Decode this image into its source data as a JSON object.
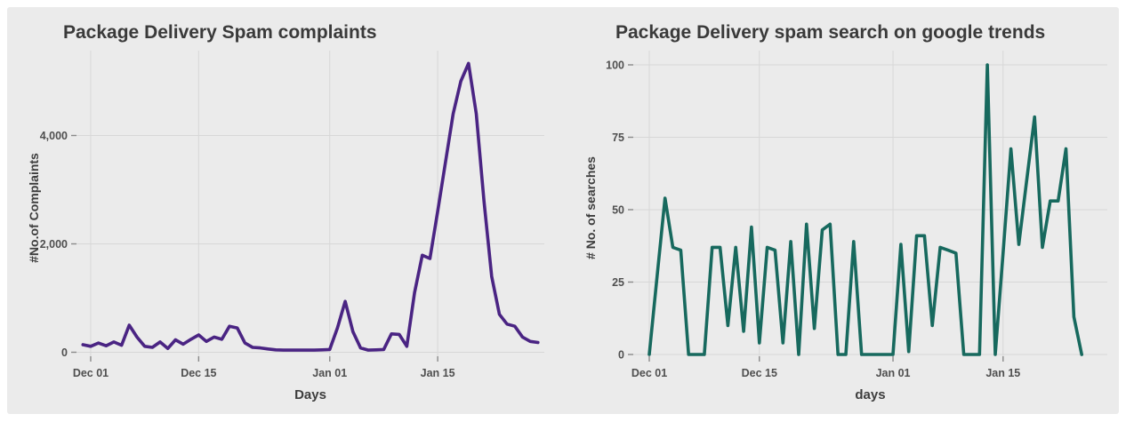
{
  "page": {
    "background": "#ffffff",
    "figure_background": "#ebebeb",
    "gridline_color": "#d7d7d7",
    "tick_mark_color": "#8a8a8a",
    "tick_label_color": "#4f4f4f",
    "axis_label_color": "#3d3d3d",
    "title_color": "#3a3a3a"
  },
  "chart_data": [
    {
      "type": "line",
      "title": "Package Delivery Spam complaints",
      "xlabel": "Days",
      "ylabel": "#No.of Complaints",
      "line_color": "#4a2483",
      "grid": true,
      "legend": "none",
      "ylim": [
        0,
        5560
      ],
      "y_ticks": [
        {
          "value": 0,
          "label": "0"
        },
        {
          "value": 2000,
          "label": "2,000"
        },
        {
          "value": 4000,
          "label": "4,000"
        }
      ],
      "x_ticks": [
        {
          "index": 1,
          "label": "Dec 01"
        },
        {
          "index": 15,
          "label": "Dec 15"
        },
        {
          "index": 32,
          "label": "Jan 01"
        },
        {
          "index": 46,
          "label": "Jan 15"
        }
      ],
      "days": [
        "Nov 30",
        "Dec 01",
        "Dec 02",
        "Dec 03",
        "Dec 04",
        "Dec 05",
        "Dec 06",
        "Dec 07",
        "Dec 08",
        "Dec 09",
        "Dec 10",
        "Dec 11",
        "Dec 12",
        "Dec 13",
        "Dec 14",
        "Dec 15",
        "Dec 16",
        "Dec 17",
        "Dec 18",
        "Dec 19",
        "Dec 20",
        "Dec 21",
        "Dec 22",
        "Dec 23",
        "Dec 24",
        "Dec 25",
        "Dec 26",
        "Dec 27",
        "Dec 28",
        "Dec 29",
        "Dec 30",
        "Dec 31",
        "Jan 01",
        "Jan 02",
        "Jan 03",
        "Jan 04",
        "Jan 05",
        "Jan 06",
        "Jan 07",
        "Jan 08",
        "Jan 09",
        "Jan 10",
        "Jan 11",
        "Jan 12",
        "Jan 13",
        "Jan 14",
        "Jan 15",
        "Jan 16",
        "Jan 17",
        "Jan 18",
        "Jan 19",
        "Jan 20",
        "Jan 21",
        "Jan 22",
        "Jan 23",
        "Jan 24",
        "Jan 25",
        "Jan 26",
        "Jan 27",
        "Jan 28"
      ],
      "values": [
        140,
        110,
        170,
        120,
        190,
        130,
        500,
        280,
        110,
        90,
        190,
        70,
        230,
        150,
        240,
        320,
        200,
        280,
        240,
        480,
        450,
        170,
        90,
        80,
        60,
        45,
        40,
        40,
        40,
        40,
        40,
        45,
        50,
        450,
        940,
        380,
        80,
        40,
        45,
        50,
        340,
        330,
        110,
        1100,
        1790,
        1730,
        2600,
        3500,
        4400,
        5000,
        5330,
        4400,
        2800,
        1400,
        700,
        520,
        480,
        280,
        200,
        180
      ]
    },
    {
      "type": "line",
      "title": "Package Delivery spam search on google trends",
      "xlabel": "days",
      "ylabel": "# No. of searches",
      "line_color": "#17695e",
      "grid": true,
      "legend": "none",
      "ylim": [
        0,
        105
      ],
      "y_ticks": [
        {
          "value": 0,
          "label": "0"
        },
        {
          "value": 25,
          "label": "25"
        },
        {
          "value": 50,
          "label": "50"
        },
        {
          "value": 75,
          "label": "75"
        },
        {
          "value": 100,
          "label": "100"
        }
      ],
      "x_ticks": [
        {
          "index": 0,
          "label": "Dec 01"
        },
        {
          "index": 14,
          "label": "Dec 15"
        },
        {
          "index": 31,
          "label": "Jan 01"
        },
        {
          "index": 45,
          "label": "Jan 15"
        }
      ],
      "days": [
        "Dec 01",
        "Dec 02",
        "Dec 03",
        "Dec 04",
        "Dec 05",
        "Dec 06",
        "Dec 07",
        "Dec 08",
        "Dec 09",
        "Dec 10",
        "Dec 11",
        "Dec 12",
        "Dec 13",
        "Dec 14",
        "Dec 15",
        "Dec 16",
        "Dec 17",
        "Dec 18",
        "Dec 19",
        "Dec 20",
        "Dec 21",
        "Dec 22",
        "Dec 23",
        "Dec 24",
        "Dec 25",
        "Dec 26",
        "Dec 27",
        "Dec 28",
        "Dec 29",
        "Dec 30",
        "Dec 31",
        "Jan 01",
        "Jan 02",
        "Jan 03",
        "Jan 04",
        "Jan 05",
        "Jan 06",
        "Jan 07",
        "Jan 08",
        "Jan 09",
        "Jan 10",
        "Jan 11",
        "Jan 12",
        "Jan 13",
        "Jan 14",
        "Jan 15",
        "Jan 16",
        "Jan 17",
        "Jan 18",
        "Jan 19",
        "Jan 20",
        "Jan 21",
        "Jan 22",
        "Jan 23",
        "Jan 24",
        "Jan 25"
      ],
      "values": [
        0,
        27,
        54,
        37,
        36,
        0,
        0,
        0,
        37,
        37,
        10,
        37,
        8,
        44,
        4,
        37,
        36,
        4,
        39,
        0,
        45,
        9,
        43,
        45,
        0,
        0,
        39,
        0,
        0,
        0,
        0,
        0,
        38,
        1,
        41,
        41,
        10,
        37,
        36,
        35,
        0,
        0,
        0,
        100,
        0,
        35,
        71,
        38,
        60,
        82,
        37,
        53,
        53,
        71,
        13,
        0
      ]
    }
  ]
}
